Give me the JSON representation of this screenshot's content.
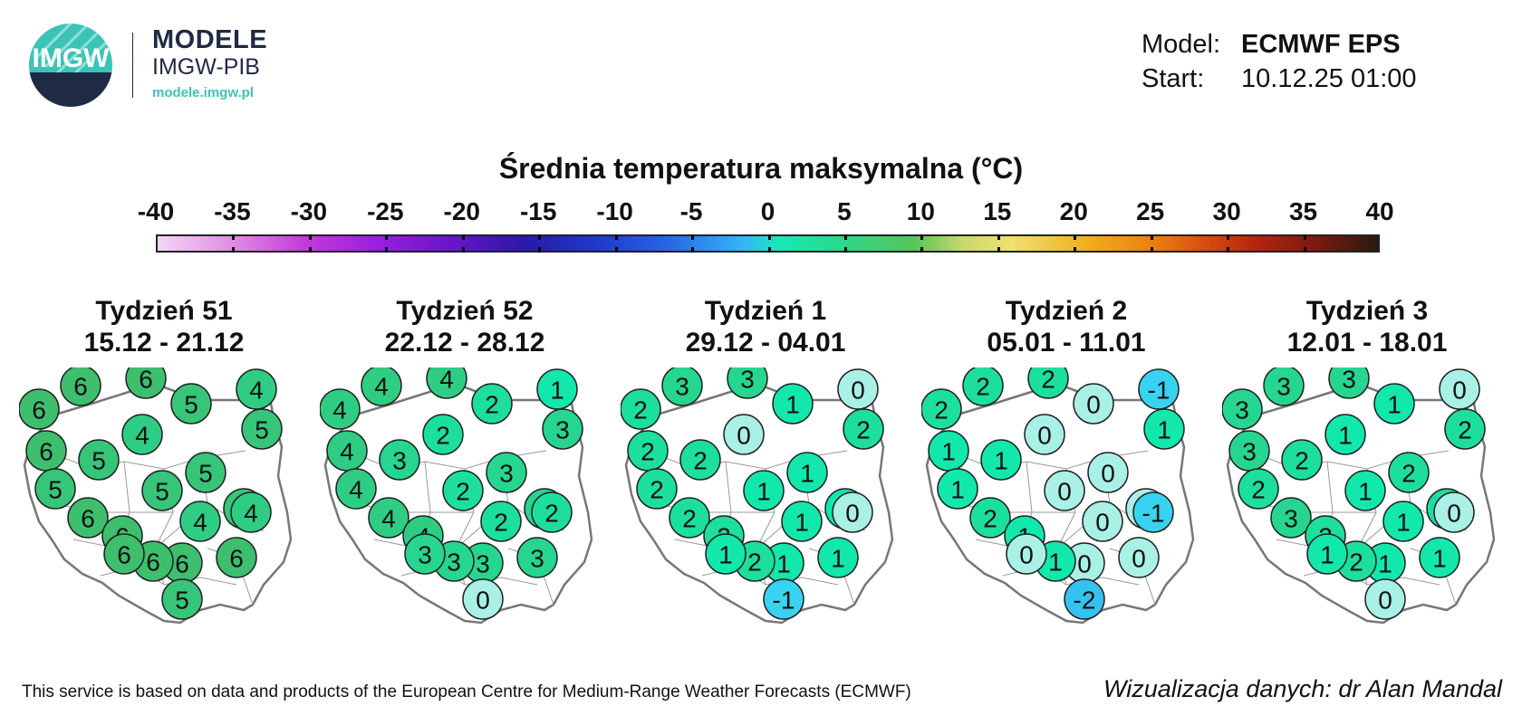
{
  "logo": {
    "mark": "IMGW",
    "title": "MODELE",
    "subtitle": "IMGW-PIB",
    "url": "modele.imgw.pl"
  },
  "meta": {
    "model_label": "Model:",
    "model_value": "ECMWF EPS",
    "start_label": "Start:",
    "start_value": "10.12.25 01:00"
  },
  "scale": {
    "title": "Średnia temperatura maksymalna (°C)",
    "ticks": [
      "-40",
      "-35",
      "-30",
      "-25",
      "-20",
      "-15",
      "-10",
      "-5",
      "0",
      "5",
      "10",
      "15",
      "20",
      "25",
      "30",
      "35",
      "40"
    ]
  },
  "weeks": [
    {
      "title": "Tydzień 51",
      "dates": "15.12 - 21.12",
      "values": [
        "6",
        "6",
        "6",
        "5",
        "4",
        "6",
        "5",
        "4",
        "5",
        "5",
        "5",
        "5",
        "5",
        "6",
        "6",
        "4",
        "4",
        "6",
        "6",
        "6",
        "6",
        "5"
      ]
    },
    {
      "title": "Tydzień 52",
      "dates": "22.12 - 28.12",
      "values": [
        "4",
        "4",
        "4",
        "2",
        "1",
        "4",
        "3",
        "2",
        "3",
        "4",
        "2",
        "3",
        "3",
        "4",
        "4",
        "2",
        "2",
        "3",
        "3",
        "3",
        "3",
        "0"
      ]
    },
    {
      "title": "Tydzień 1",
      "dates": "29.12 - 04.01",
      "values": [
        "2",
        "3",
        "3",
        "1",
        "0",
        "2",
        "2",
        "0",
        "2",
        "2",
        "1",
        "1",
        "1",
        "2",
        "2",
        "1",
        "0",
        "1",
        "2",
        "1",
        "1",
        "-1"
      ]
    },
    {
      "title": "Tydzień 2",
      "dates": "05.01 - 11.01",
      "values": [
        "2",
        "2",
        "2",
        "0",
        "-1",
        "1",
        "1",
        "0",
        "1",
        "1",
        "0",
        "0",
        "0",
        "2",
        "1",
        "0",
        "-1",
        "0",
        "1",
        "0",
        "0",
        "-2"
      ]
    },
    {
      "title": "Tydzień 3",
      "dates": "12.01 - 18.01",
      "values": [
        "3",
        "3",
        "3",
        "1",
        "0",
        "3",
        "2",
        "1",
        "2",
        "2",
        "1",
        "2",
        "2",
        "3",
        "2",
        "1",
        "0",
        "1",
        "2",
        "1",
        "1",
        "0"
      ]
    }
  ],
  "colors": {
    "v6": "#3dbf6e",
    "v5": "#36c579",
    "v4": "#2fcd84",
    "v3": "#26d690",
    "v2": "#1ddf9d",
    "v1": "#12e8ac",
    "v0": "#a9f0e6",
    "vm1": "#38d3f0",
    "vm2": "#36c2ef",
    "outline": "#222222",
    "map_fill": "#ffffff",
    "map_stroke": "#999999"
  },
  "footer": {
    "left": "This service is based on data and products of the European Centre for Medium-Range Weather Forecasts (ECMWF)",
    "right": "Wizualizacja danych: dr Alan Mandal"
  }
}
